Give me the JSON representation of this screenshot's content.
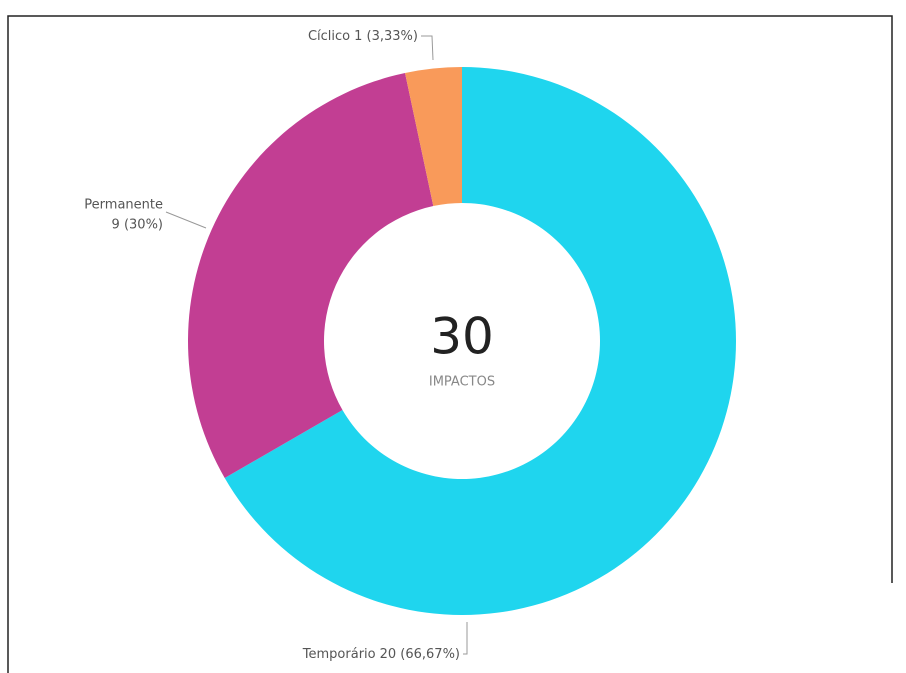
{
  "chart_data": {
    "type": "donut",
    "categories": [
      "Temporário",
      "Permanente",
      "Cíclico"
    ],
    "values": [
      20,
      9,
      1
    ],
    "value_labels": [
      "20 (66,67%)",
      "9 (30%)",
      "1 (3,33%)"
    ],
    "colors": [
      "#1fd5ee",
      "#c23e93",
      "#f99a5a"
    ],
    "center_value": 30,
    "center_label": "IMPACTOS"
  }
}
